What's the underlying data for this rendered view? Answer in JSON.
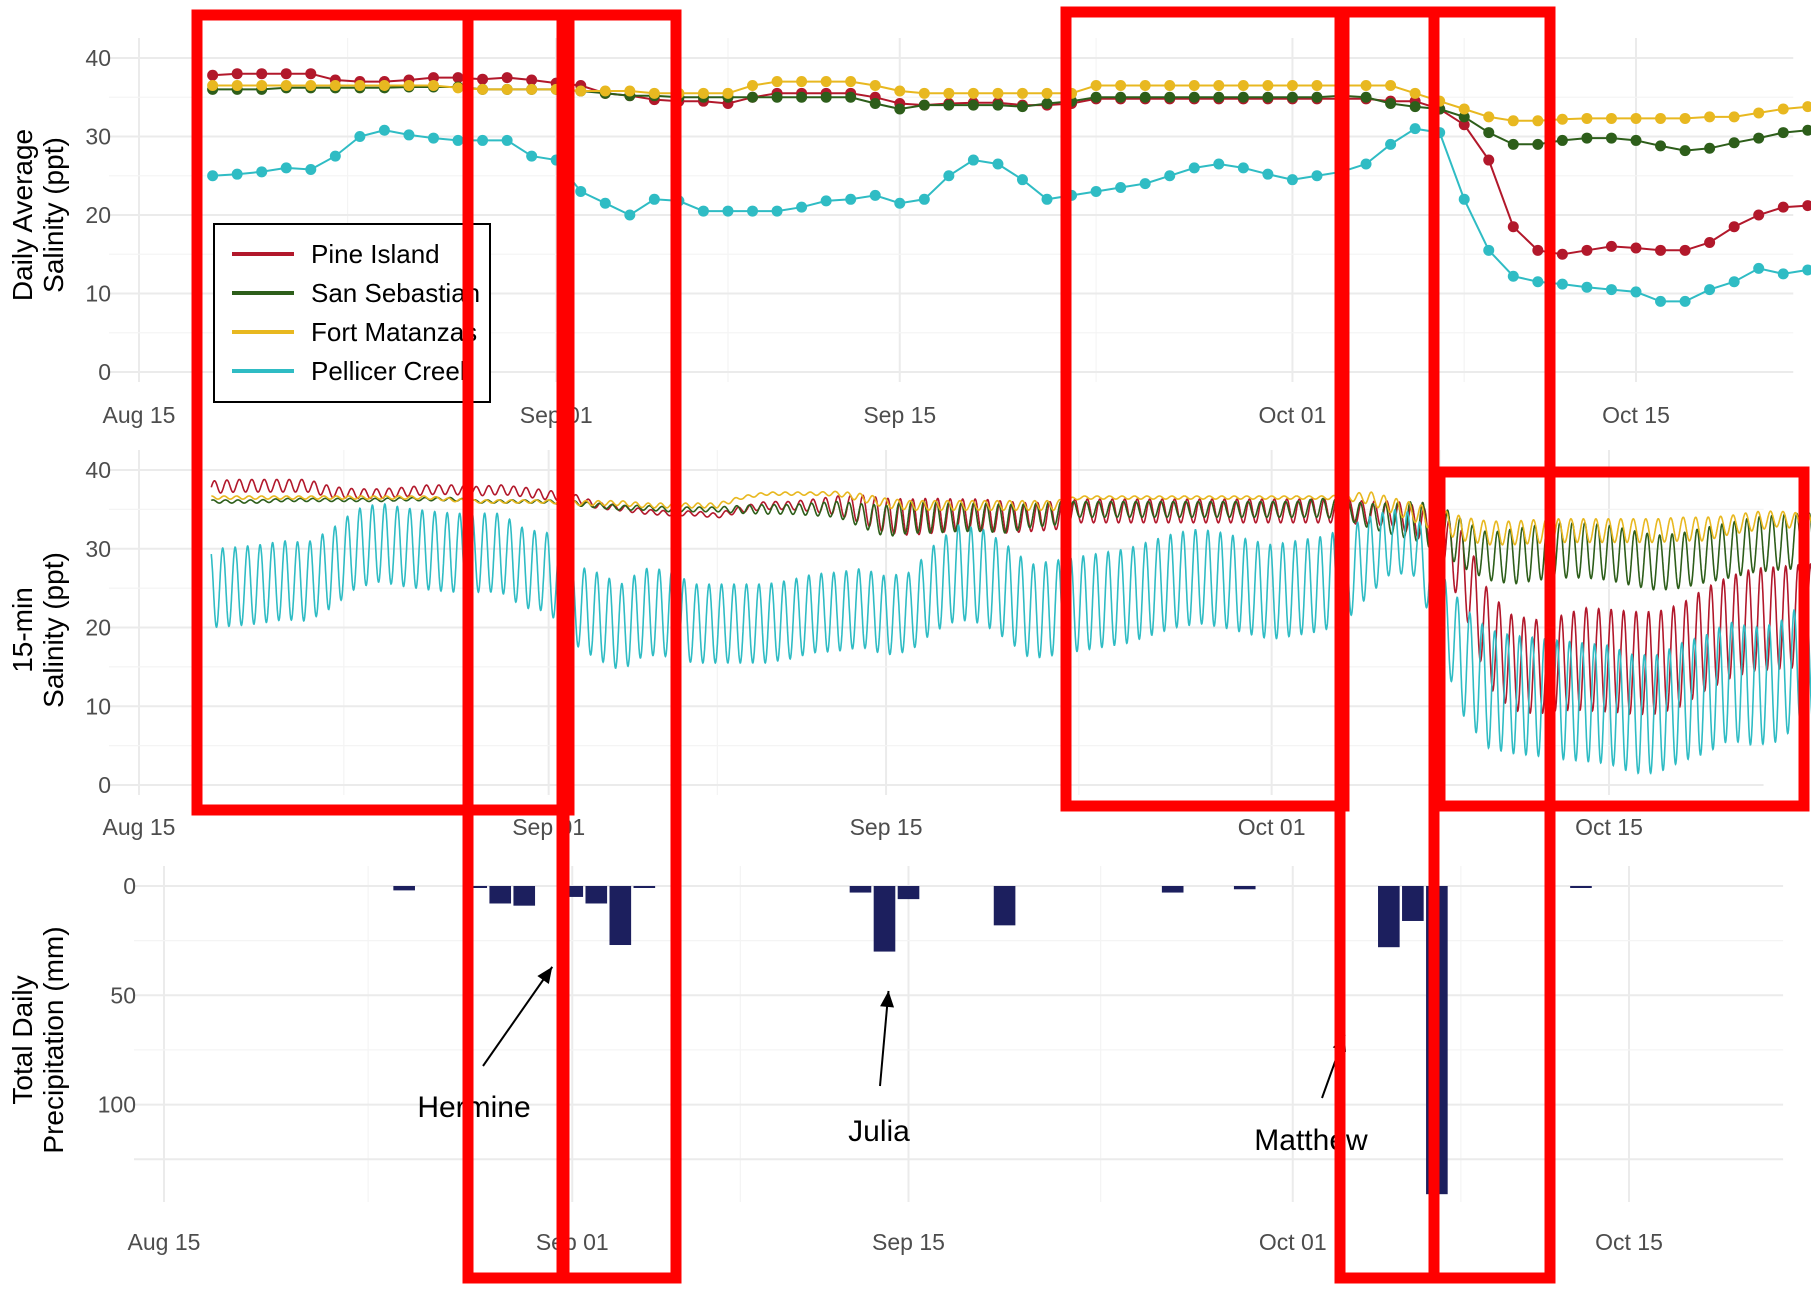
{
  "chart_data": [
    {
      "type": "line",
      "ylabel": [
        "Daily Average",
        "Salinity (ppt)"
      ],
      "xlabel": "",
      "ylim": [
        0,
        40
      ],
      "yticks": [
        "0",
        "10",
        "20",
        "30",
        "40"
      ],
      "xticks": [
        "Aug 15",
        "Sep 01",
        "Sep 15",
        "Oct 01",
        "Oct 15"
      ],
      "xtick_values": [
        "2016-08-15",
        "2016-09-01",
        "2016-09-15",
        "2016-10-01",
        "2016-10-15"
      ],
      "xlim": [
        "2016-08-15",
        "2016-10-21"
      ],
      "markers": true,
      "legend": {
        "placement": "inside-left",
        "entries": [
          "Pine Island",
          "San Sebastian",
          "Fort Matanzas",
          "Pellicer Creek"
        ]
      },
      "x_start": "2016-08-18",
      "series": [
        {
          "name": "Pine Island",
          "color": "#b2182b",
          "values": [
            37.8,
            38.0,
            38.0,
            38.0,
            38.0,
            37.2,
            37.0,
            37.0,
            37.2,
            37.5,
            37.5,
            37.3,
            37.5,
            37.2,
            36.8,
            36.5,
            35.5,
            35.2,
            34.7,
            34.5,
            34.5,
            34.2,
            35.0,
            35.5,
            35.5,
            35.5,
            35.5,
            35.0,
            34.2,
            34.0,
            34.2,
            34.3,
            34.3,
            34.0,
            34.0,
            34.2,
            34.8,
            34.8,
            34.8,
            34.8,
            34.8,
            34.8,
            34.8,
            34.8,
            34.8,
            34.8,
            34.8,
            34.8,
            34.5,
            34.5,
            33.5,
            31.5,
            27.0,
            18.5,
            15.5,
            15.0,
            15.5,
            16.0,
            15.8,
            15.5,
            15.5,
            16.5,
            18.5,
            20.0,
            21.0,
            21.2,
            21.5,
            21.7,
            21.8
          ]
        },
        {
          "name": "San Sebastian",
          "color": "#2d5e1a",
          "values": [
            36.0,
            36.0,
            36.0,
            36.2,
            36.2,
            36.2,
            36.2,
            36.2,
            36.3,
            36.3,
            36.3,
            36.0,
            36.0,
            36.0,
            36.0,
            35.8,
            35.5,
            35.2,
            35.2,
            35.0,
            35.0,
            35.0,
            35.0,
            35.0,
            35.0,
            35.0,
            35.0,
            34.2,
            33.5,
            34.0,
            34.0,
            34.0,
            34.0,
            33.8,
            34.2,
            34.5,
            35.0,
            35.0,
            35.0,
            35.0,
            35.0,
            35.0,
            35.0,
            35.0,
            35.0,
            35.0,
            35.2,
            35.0,
            34.2,
            33.8,
            33.5,
            32.5,
            30.5,
            29.0,
            29.0,
            29.5,
            29.8,
            29.8,
            29.5,
            28.8,
            28.2,
            28.5,
            29.2,
            29.8,
            30.5,
            30.8,
            31.0,
            31.0,
            31.0
          ]
        },
        {
          "name": "Fort Matanzas",
          "color": "#e8b820",
          "values": [
            36.5,
            36.5,
            36.5,
            36.5,
            36.5,
            36.5,
            36.5,
            36.5,
            36.5,
            36.5,
            36.2,
            36.0,
            36.0,
            36.0,
            36.0,
            35.8,
            35.8,
            35.8,
            35.5,
            35.5,
            35.5,
            35.5,
            36.5,
            37.0,
            37.0,
            37.0,
            37.0,
            36.5,
            35.8,
            35.5,
            35.5,
            35.5,
            35.5,
            35.5,
            35.5,
            35.5,
            36.5,
            36.5,
            36.5,
            36.5,
            36.5,
            36.5,
            36.5,
            36.5,
            36.5,
            36.5,
            36.5,
            36.5,
            36.5,
            35.5,
            34.5,
            33.5,
            32.5,
            32.0,
            32.0,
            32.2,
            32.3,
            32.3,
            32.3,
            32.3,
            32.3,
            32.5,
            32.5,
            33.0,
            33.5,
            33.8,
            33.5,
            33.5,
            33.5
          ]
        },
        {
          "name": "Pellicer Creek",
          "color": "#2fbcc4",
          "values": [
            25.0,
            25.2,
            25.5,
            26.0,
            25.8,
            27.5,
            30.0,
            30.8,
            30.2,
            29.8,
            29.5,
            29.5,
            29.5,
            27.5,
            27.0,
            23.0,
            21.5,
            20.0,
            22.0,
            21.8,
            20.5,
            20.5,
            20.5,
            20.5,
            21.0,
            21.8,
            22.0,
            22.5,
            21.5,
            22.0,
            25.0,
            27.0,
            26.5,
            24.5,
            22.0,
            22.5,
            23.0,
            23.5,
            24.0,
            25.0,
            26.0,
            26.5,
            26.0,
            25.2,
            24.5,
            25.0,
            25.5,
            26.5,
            29.0,
            31.0,
            30.5,
            22.0,
            15.5,
            12.2,
            11.5,
            11.2,
            10.8,
            10.5,
            10.2,
            9.0,
            9.0,
            10.5,
            11.5,
            13.2,
            12.5,
            13.0,
            15.5,
            15.8,
            15.8
          ]
        }
      ]
    },
    {
      "type": "line",
      "ylabel": [
        "15-min",
        "Salinity (ppt)"
      ],
      "xlabel": "",
      "ylim": [
        0,
        40
      ],
      "yticks": [
        "0",
        "10",
        "20",
        "30",
        "40"
      ],
      "xticks": [
        "Aug 15",
        "Sep 01",
        "Sep 15",
        "Oct 01",
        "Oct 15"
      ],
      "xtick_values": [
        "2016-08-15",
        "2016-09-01",
        "2016-09-15",
        "2016-10-01",
        "2016-10-15"
      ],
      "xlim": [
        "2016-08-15",
        "2016-10-21"
      ],
      "markers": false,
      "sampling_interval_min": 15,
      "x_start": "2016-08-18",
      "series": [
        {
          "name": "Pine Island",
          "color": "#b2182b",
          "daily_mean": [
            37.8,
            38.0,
            38.0,
            38.0,
            38.0,
            37.2,
            37.0,
            37.0,
            37.2,
            37.5,
            37.5,
            37.3,
            37.5,
            37.2,
            36.8,
            36.5,
            35.5,
            35.2,
            34.7,
            34.5,
            34.5,
            34.2,
            35.0,
            35.5,
            35.5,
            35.5,
            35.5,
            35.0,
            34.2,
            34.0,
            34.2,
            34.3,
            34.3,
            34.0,
            34.0,
            34.2,
            34.8,
            34.8,
            34.8,
            34.8,
            34.8,
            34.8,
            34.8,
            34.8,
            34.8,
            34.8,
            34.8,
            34.8,
            34.5,
            34.5,
            33.5,
            31.5,
            27.0,
            18.5,
            15.5,
            15.0,
            15.5,
            16.0,
            15.8,
            15.5,
            15.5,
            16.5,
            18.5,
            20.0,
            21.0,
            21.2,
            21.5,
            21.7,
            21.8
          ],
          "tidal_amplitude": [
            0.8,
            0.8,
            0.8,
            0.8,
            0.8,
            0.7,
            0.6,
            0.6,
            0.6,
            0.6,
            0.6,
            0.6,
            0.6,
            0.6,
            0.6,
            0.5,
            0.4,
            0.4,
            0.3,
            0.3,
            0.3,
            0.3,
            0.4,
            0.5,
            0.5,
            0.8,
            1.2,
            1.8,
            2.2,
            2.3,
            2.2,
            2.0,
            2.0,
            2.0,
            1.8,
            1.8,
            1.5,
            1.5,
            1.5,
            1.5,
            1.5,
            1.5,
            1.5,
            1.5,
            1.5,
            1.5,
            1.5,
            1.5,
            1.5,
            1.6,
            2.0,
            3.0,
            5.0,
            6.0,
            6.0,
            6.0,
            6.0,
            6.5,
            6.5,
            6.5,
            6.5,
            6.5,
            6.5,
            6.5,
            6.5,
            6.5,
            6.5,
            6.5,
            6.5
          ]
        },
        {
          "name": "San Sebastian",
          "color": "#2d5e1a",
          "daily_mean": [
            36.0,
            36.0,
            36.0,
            36.2,
            36.2,
            36.2,
            36.2,
            36.2,
            36.3,
            36.3,
            36.3,
            36.0,
            36.0,
            36.0,
            36.0,
            35.8,
            35.5,
            35.2,
            35.2,
            35.0,
            35.0,
            35.0,
            35.0,
            35.0,
            35.0,
            35.0,
            35.0,
            34.2,
            33.5,
            34.0,
            34.0,
            34.0,
            34.0,
            33.8,
            34.2,
            34.5,
            35.0,
            35.0,
            35.0,
            35.0,
            35.0,
            35.0,
            35.0,
            35.0,
            35.0,
            35.0,
            35.2,
            35.0,
            34.2,
            33.8,
            33.5,
            32.5,
            30.5,
            29.0,
            29.0,
            29.5,
            29.8,
            29.8,
            29.5,
            28.8,
            28.2,
            28.5,
            29.2,
            29.8,
            30.5,
            30.8,
            31.0,
            31.0,
            31.0
          ],
          "tidal_amplitude": [
            0.2,
            0.2,
            0.2,
            0.2,
            0.2,
            0.2,
            0.2,
            0.2,
            0.2,
            0.2,
            0.2,
            0.2,
            0.2,
            0.2,
            0.2,
            0.3,
            0.3,
            0.3,
            0.3,
            0.3,
            0.3,
            0.3,
            0.5,
            0.6,
            0.6,
            0.8,
            1.0,
            1.5,
            2.0,
            2.0,
            2.0,
            1.8,
            1.8,
            1.8,
            1.5,
            1.5,
            1.0,
            1.0,
            1.0,
            1.0,
            1.0,
            1.0,
            1.0,
            1.0,
            1.0,
            1.0,
            1.2,
            1.2,
            1.5,
            2.0,
            2.5,
            3.0,
            3.0,
            3.0,
            3.5,
            3.5,
            3.5,
            3.5,
            3.5,
            3.5,
            3.5,
            3.5,
            3.5,
            3.5,
            3.5,
            3.5,
            3.5,
            3.5,
            3.5
          ]
        },
        {
          "name": "Fort Matanzas",
          "color": "#e8b820",
          "daily_mean": [
            36.5,
            36.5,
            36.5,
            36.5,
            36.5,
            36.5,
            36.5,
            36.5,
            36.5,
            36.5,
            36.2,
            36.0,
            36.0,
            36.0,
            36.0,
            35.8,
            35.8,
            35.8,
            35.5,
            35.5,
            35.5,
            35.5,
            36.5,
            37.0,
            37.0,
            37.0,
            37.0,
            36.5,
            35.8,
            35.5,
            35.5,
            35.5,
            35.5,
            35.5,
            35.5,
            35.5,
            36.5,
            36.5,
            36.5,
            36.5,
            36.5,
            36.5,
            36.5,
            36.5,
            36.5,
            36.5,
            36.5,
            36.5,
            36.5,
            35.5,
            34.5,
            33.5,
            32.5,
            32.0,
            32.0,
            32.2,
            32.3,
            32.3,
            32.3,
            32.3,
            32.3,
            32.5,
            32.5,
            33.0,
            33.5,
            33.8,
            33.5,
            33.5,
            33.5
          ],
          "tidal_amplitude": [
            0.2,
            0.2,
            0.2,
            0.2,
            0.2,
            0.2,
            0.2,
            0.2,
            0.2,
            0.2,
            0.2,
            0.2,
            0.2,
            0.2,
            0.2,
            0.3,
            0.3,
            0.3,
            0.3,
            0.3,
            0.3,
            0.3,
            0.2,
            0.2,
            0.2,
            0.2,
            0.3,
            0.5,
            0.6,
            0.6,
            0.6,
            0.6,
            0.6,
            0.6,
            0.6,
            0.6,
            0.2,
            0.2,
            0.2,
            0.2,
            0.2,
            0.2,
            0.2,
            0.2,
            0.2,
            0.2,
            0.2,
            0.3,
            0.8,
            1.0,
            1.2,
            1.5,
            1.5,
            1.5,
            1.5,
            1.5,
            1.5,
            1.5,
            1.5,
            1.5,
            1.5,
            1.5,
            1.5,
            1.2,
            1.2,
            1.0,
            1.0,
            1.0,
            1.0
          ]
        },
        {
          "name": "Pellicer Creek",
          "color": "#2fbcc4",
          "daily_mean": [
            25.0,
            25.2,
            25.5,
            26.0,
            25.8,
            27.5,
            30.0,
            30.8,
            30.2,
            29.8,
            29.5,
            29.5,
            29.5,
            27.5,
            27.0,
            23.0,
            21.5,
            20.0,
            22.0,
            21.8,
            20.5,
            20.5,
            20.5,
            20.5,
            21.0,
            21.8,
            22.0,
            22.5,
            21.5,
            22.0,
            25.0,
            27.0,
            26.5,
            24.5,
            22.0,
            22.5,
            23.0,
            23.5,
            24.0,
            25.0,
            26.0,
            26.5,
            26.0,
            25.2,
            24.5,
            25.0,
            25.5,
            26.5,
            29.0,
            31.0,
            30.5,
            22.0,
            15.5,
            12.2,
            11.5,
            11.2,
            10.8,
            10.5,
            10.2,
            9.0,
            9.0,
            10.5,
            11.5,
            13.2,
            12.5,
            13.0,
            15.5,
            15.8,
            15.8
          ],
          "tidal_amplitude": [
            5.0,
            5.0,
            5.0,
            5.0,
            5.0,
            5.0,
            5.0,
            5.0,
            5.0,
            5.0,
            5.0,
            5.0,
            5.0,
            5.0,
            5.0,
            5.0,
            5.5,
            5.5,
            5.5,
            5.5,
            5.0,
            5.0,
            5.0,
            5.0,
            5.0,
            5.0,
            5.0,
            5.0,
            5.0,
            5.0,
            5.5,
            6.0,
            6.0,
            6.0,
            6.0,
            6.0,
            6.0,
            6.0,
            6.0,
            6.0,
            6.0,
            6.0,
            6.0,
            6.0,
            6.0,
            6.0,
            6.0,
            6.0,
            5.0,
            4.0,
            4.0,
            5.0,
            7.0,
            7.5,
            7.5,
            7.5,
            7.5,
            7.5,
            7.5,
            7.5,
            7.5,
            7.5,
            7.5,
            7.5,
            7.5,
            7.5,
            7.5,
            7.5,
            7.5
          ]
        }
      ]
    },
    {
      "type": "bar",
      "ylabel": [
        "Total Daily",
        "Precipitation (mm)"
      ],
      "xlabel": "",
      "y_reversed": true,
      "ylim": [
        0,
        140
      ],
      "yticks": [
        "0",
        "50",
        "100"
      ],
      "xticks": [
        "Aug 15",
        "Sep 01",
        "Sep 15",
        "Oct 01",
        "Oct 15"
      ],
      "xtick_values": [
        "2016-08-15",
        "2016-09-01",
        "2016-09-15",
        "2016-10-01",
        "2016-10-15"
      ],
      "xlim": [
        "2016-08-15",
        "2016-10-21"
      ],
      "bar_color": "#1c1f5e",
      "bars": [
        {
          "date": "2016-08-25",
          "value": 2
        },
        {
          "date": "2016-08-28",
          "value": 0.8
        },
        {
          "date": "2016-08-29",
          "value": 8
        },
        {
          "date": "2016-08-30",
          "value": 9
        },
        {
          "date": "2016-09-01",
          "value": 5
        },
        {
          "date": "2016-09-02",
          "value": 8
        },
        {
          "date": "2016-09-03",
          "value": 27
        },
        {
          "date": "2016-09-04",
          "value": 0.6
        },
        {
          "date": "2016-09-13",
          "value": 3
        },
        {
          "date": "2016-09-14",
          "value": 30
        },
        {
          "date": "2016-09-15",
          "value": 6
        },
        {
          "date": "2016-09-19",
          "value": 18
        },
        {
          "date": "2016-09-26",
          "value": 3
        },
        {
          "date": "2016-09-29",
          "value": 1.5
        },
        {
          "date": "2016-10-05",
          "value": 28
        },
        {
          "date": "2016-10-06",
          "value": 16
        },
        {
          "date": "2016-10-07",
          "value": 141
        },
        {
          "date": "2016-10-13",
          "value": 0.6
        }
      ],
      "annotations": [
        {
          "text": "Hermine",
          "target_date": "2016-08-31",
          "target_value": 37
        },
        {
          "text": "Julia",
          "target_date": "2016-09-14",
          "target_value": 48
        },
        {
          "text": "Matthew",
          "target_date": "2016-10-03",
          "target_value": 68
        }
      ]
    }
  ],
  "highlight_box_color": "#ff0000"
}
